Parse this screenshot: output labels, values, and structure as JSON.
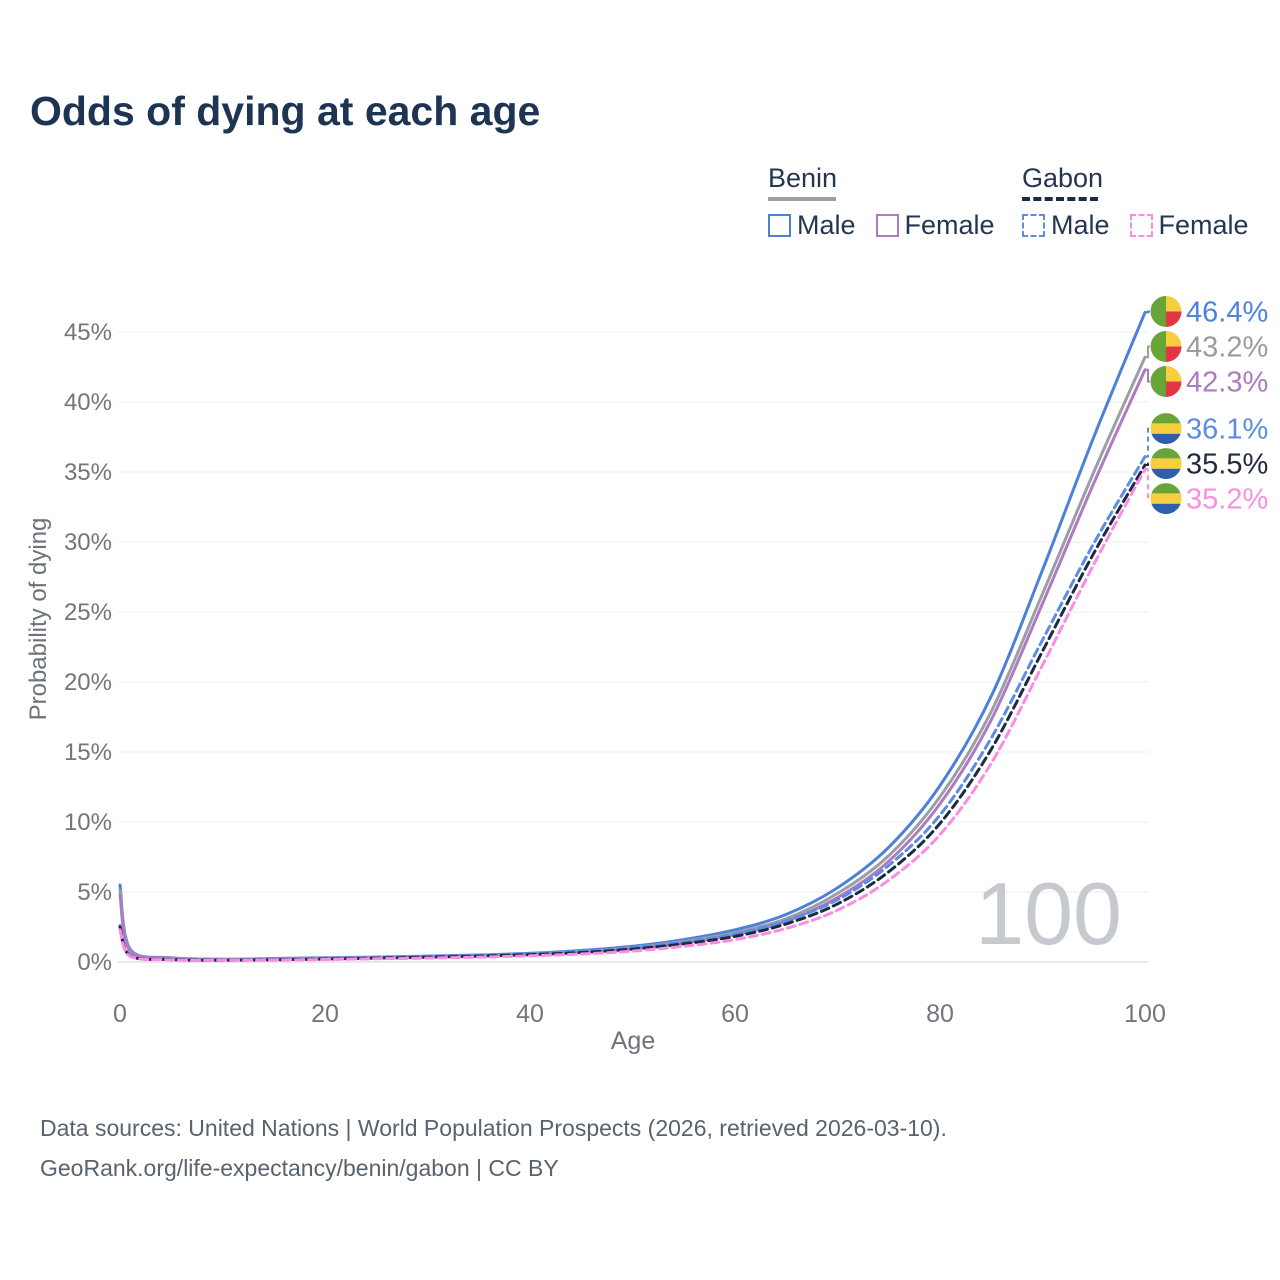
{
  "title": "Odds of dying at each age",
  "legend": {
    "groups": [
      {
        "name": "Benin",
        "line_style": "solid",
        "header_line_color": "#9aa1a9",
        "items": [
          {
            "label": "Male",
            "color": "#4d80d8"
          },
          {
            "label": "Female",
            "color": "#ae7ac0"
          }
        ]
      },
      {
        "name": "Gabon",
        "line_style": "dashed",
        "header_line_color": "#1c2b41",
        "items": [
          {
            "label": "Male",
            "color": "#5d8ce2"
          },
          {
            "label": "Female",
            "color": "#fb8ce4"
          }
        ]
      }
    ]
  },
  "chart_data": {
    "type": "line",
    "title": "Odds of dying at each age",
    "xlabel": "Age",
    "ylabel": "Probability of dying",
    "xlim": [
      0,
      100
    ],
    "ylim_percent": [
      0,
      47
    ],
    "x_ticks": [
      0,
      20,
      40,
      60,
      80,
      100
    ],
    "y_ticks": [
      "0%",
      "5%",
      "10%",
      "15%",
      "20%",
      "25%",
      "30%",
      "35%",
      "40%",
      "45%"
    ],
    "grid": true,
    "legend_position": "top-right",
    "watermark": "100",
    "ages": [
      0,
      1,
      5,
      10,
      15,
      20,
      25,
      30,
      35,
      40,
      45,
      50,
      55,
      60,
      65,
      70,
      75,
      80,
      85,
      90,
      95,
      100
    ],
    "series": [
      {
        "id": "benin-male",
        "country": "Benin",
        "sex": "Male",
        "flag": "benin",
        "dashed": false,
        "color": "#4d80d8",
        "label_color": "#4d82dd",
        "end_label": "46.4%",
        "values": [
          5.5,
          0.9,
          0.3,
          0.2,
          0.25,
          0.3,
          0.35,
          0.42,
          0.5,
          0.62,
          0.82,
          1.12,
          1.6,
          2.3,
          3.4,
          5.3,
          8.2,
          12.6,
          19.0,
          28.0,
          37.5,
          46.4
        ]
      },
      {
        "id": "benin-total",
        "country": "Benin",
        "sex": "Both sexes",
        "flag": "benin",
        "dashed": false,
        "color": "#9b9fa5",
        "label_color": "#9b9b9b",
        "end_label": "43.2%",
        "values": [
          5.1,
          0.82,
          0.28,
          0.19,
          0.22,
          0.27,
          0.32,
          0.38,
          0.46,
          0.57,
          0.75,
          1.03,
          1.47,
          2.1,
          3.1,
          4.9,
          7.6,
          11.8,
          17.9,
          26.3,
          35.0,
          43.2
        ]
      },
      {
        "id": "benin-female",
        "country": "Benin",
        "sex": "Female",
        "flag": "benin",
        "dashed": false,
        "color": "#ae7ac0",
        "label_color": "#ae7ac0",
        "end_label": "42.3%",
        "values": [
          4.8,
          0.75,
          0.26,
          0.18,
          0.2,
          0.24,
          0.29,
          0.34,
          0.42,
          0.52,
          0.68,
          0.94,
          1.35,
          1.95,
          2.9,
          4.6,
          7.2,
          11.3,
          17.3,
          25.6,
          34.2,
          42.3
        ]
      },
      {
        "id": "gabon-male",
        "country": "Gabon",
        "sex": "Male",
        "flag": "gabon",
        "dashed": true,
        "color": "#5d8ce2",
        "label_color": "#5d8de0",
        "end_label": "36.1%",
        "values": [
          2.6,
          0.45,
          0.18,
          0.14,
          0.18,
          0.24,
          0.31,
          0.38,
          0.47,
          0.59,
          0.76,
          1.02,
          1.42,
          2.0,
          2.95,
          4.45,
          6.9,
          10.5,
          16.0,
          23.0,
          29.9,
          36.1
        ]
      },
      {
        "id": "gabon-total",
        "country": "Gabon",
        "sex": "Both sexes",
        "flag": "gabon",
        "dashed": true,
        "color": "#1c2b41",
        "label_color": "#222c3d",
        "end_label": "35.5%",
        "values": [
          2.5,
          0.42,
          0.17,
          0.13,
          0.16,
          0.21,
          0.27,
          0.34,
          0.42,
          0.53,
          0.68,
          0.92,
          1.3,
          1.83,
          2.72,
          4.15,
          6.45,
          9.9,
          15.2,
          22.2,
          29.2,
          35.5
        ]
      },
      {
        "id": "gabon-female",
        "country": "Gabon",
        "sex": "Female",
        "flag": "gabon",
        "dashed": true,
        "color": "#fb8ce4",
        "label_color": "#fb8fe0",
        "end_label": "35.2%",
        "values": [
          2.3,
          0.4,
          0.15,
          0.12,
          0.14,
          0.18,
          0.23,
          0.28,
          0.35,
          0.44,
          0.57,
          0.78,
          1.12,
          1.6,
          2.4,
          3.7,
          5.85,
          9.1,
          14.2,
          21.2,
          28.4,
          35.2
        ]
      }
    ],
    "flag_colors": {
      "benin": {
        "green": "#68a538",
        "yellow": "#f7cf3e",
        "red": "#e43545"
      },
      "gabon": {
        "green": "#68a538",
        "yellow": "#f7cf3e",
        "blue": "#2d5fae"
      }
    }
  },
  "footer": {
    "line1": "Data sources: United Nations | World Population Prospects (2026, retrieved 2026-03-10).",
    "line2": "GeoRank.org/life-expectancy/benin/gabon | CC BY"
  }
}
